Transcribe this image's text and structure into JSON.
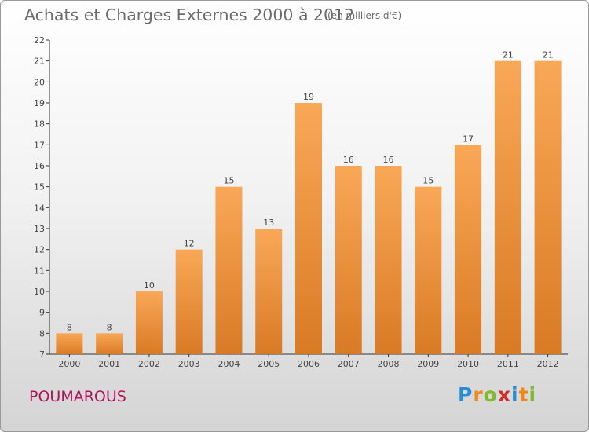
{
  "header": {
    "title": "Achats et Charges Externes 2000 à 2012",
    "unit": "(en milliers d'€)"
  },
  "footer": {
    "commune": "POUMAROUS",
    "logo_letters": [
      "P",
      "r",
      "o",
      "x",
      "i",
      "t",
      "i"
    ],
    "logo_colors": [
      "#2a8dd4",
      "#f08a1c",
      "#7fba2c",
      "#d22a2a",
      "#2a8dd4",
      "#f08a1c",
      "#7fba2c"
    ]
  },
  "colors": {
    "bar_light": "#f9a857",
    "bar_dark": "#d97a25",
    "commune": "#b3135b"
  },
  "chart_data": {
    "type": "bar",
    "title": "Achats et Charges Externes 2000 à 2012",
    "subtitle": "(en milliers d'€)",
    "categories": [
      "2000",
      "2001",
      "2002",
      "2003",
      "2004",
      "2005",
      "2006",
      "2007",
      "2008",
      "2009",
      "2010",
      "2011",
      "2012"
    ],
    "values": [
      8,
      8,
      10,
      12,
      15,
      13,
      19,
      16,
      16,
      15,
      17,
      21,
      21
    ],
    "ylim": [
      7,
      22
    ],
    "yticks": [
      7,
      8,
      9,
      10,
      11,
      12,
      13,
      14,
      15,
      16,
      17,
      18,
      19,
      20,
      21,
      22
    ],
    "grid": false,
    "xlabel": "",
    "ylabel": ""
  }
}
